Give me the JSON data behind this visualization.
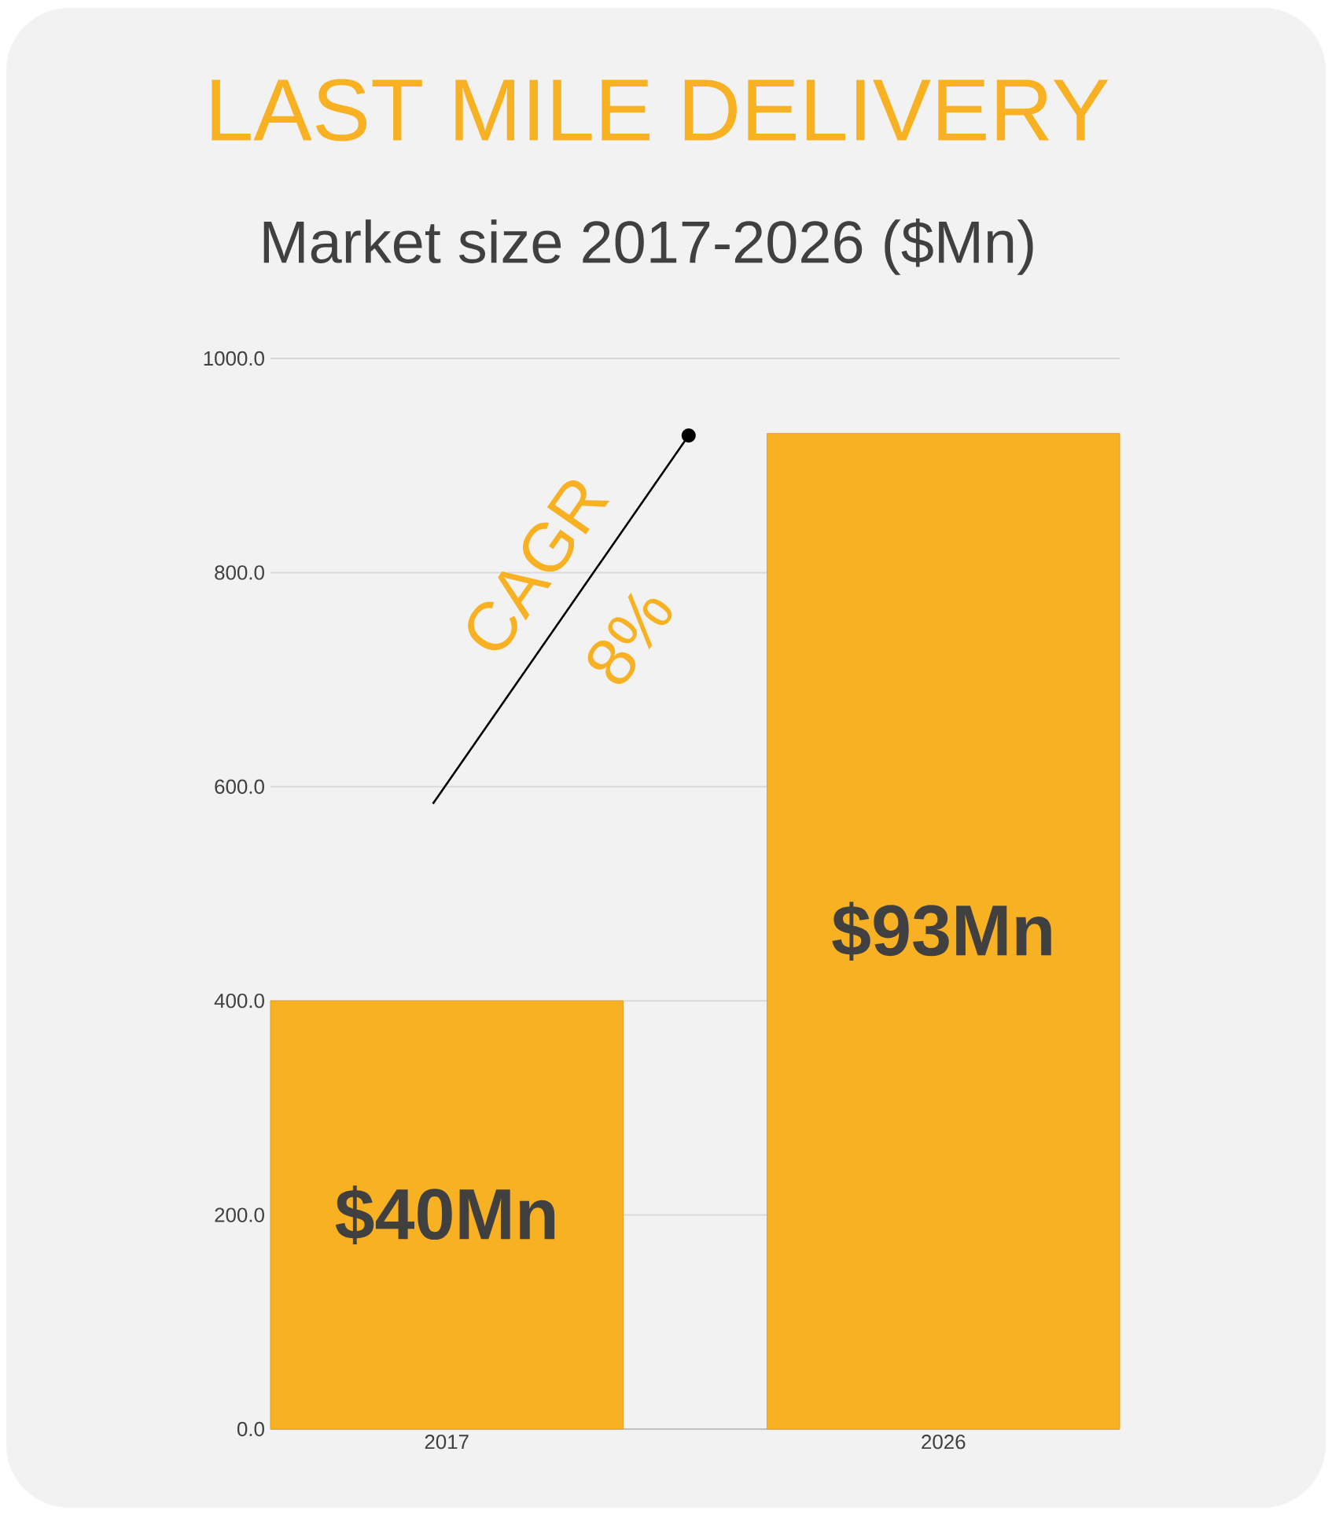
{
  "chart_data": {
    "type": "bar",
    "title": "LAST MILE DELIVERY",
    "subtitle": "Market size 2017-2026 ($Mn)",
    "categories": [
      "2017",
      "2026"
    ],
    "values": [
      400,
      930
    ],
    "color": "#f9b124",
    "ylim": [
      0,
      1000
    ],
    "yticks": [
      {
        "value": 0,
        "label": "0.0"
      },
      {
        "value": 200,
        "label": "200.0"
      },
      {
        "value": 400,
        "label": "400.0"
      },
      {
        "value": 600,
        "label": "600.0"
      },
      {
        "value": 800,
        "label": "800.0"
      },
      {
        "value": 1000,
        "label": "1000.0"
      }
    ],
    "grid": "y",
    "annotations": [
      "$40Mn",
      "$93Mn",
      "CAGR",
      "8%"
    ]
  }
}
